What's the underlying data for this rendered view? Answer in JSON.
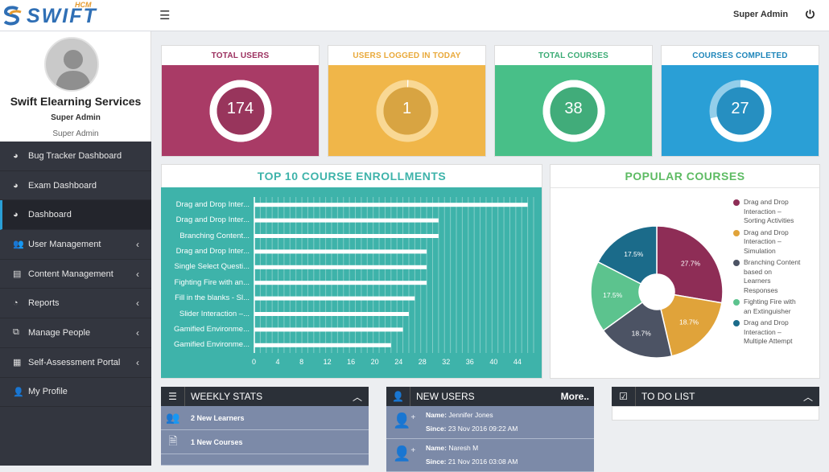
{
  "app": {
    "logo_text": "SWIFT",
    "logo_sup": "HCM",
    "user_name": "Super Admin"
  },
  "profile": {
    "org": "Swift Elearning Services",
    "role": "Super Admin",
    "role_sub": "Super Admin"
  },
  "nav": [
    {
      "label": "Bug Tracker Dashboard",
      "icon": "dashboard-icon",
      "chevron": false,
      "active": false
    },
    {
      "label": "Exam Dashboard",
      "icon": "dashboard-icon",
      "chevron": false,
      "active": false
    },
    {
      "label": "Dashboard",
      "icon": "dashboard-icon",
      "chevron": false,
      "active": true
    },
    {
      "label": "User Management",
      "icon": "users-icon",
      "chevron": true,
      "active": false
    },
    {
      "label": "Content Management",
      "icon": "book-icon",
      "chevron": true,
      "active": false
    },
    {
      "label": "Reports",
      "icon": "pie-chart-icon",
      "chevron": true,
      "active": false
    },
    {
      "label": "Manage People",
      "icon": "people-icon",
      "chevron": true,
      "active": false
    },
    {
      "label": "Self-Assessment Portal",
      "icon": "document-icon",
      "chevron": true,
      "active": false
    },
    {
      "label": "My Profile",
      "icon": "user-icon",
      "chevron": false,
      "active": false
    }
  ],
  "stats": [
    {
      "title": "TOTAL USERS",
      "value": "174",
      "color": "#a93b66",
      "title_color": "#9b2f5e",
      "ring": "#ffffff",
      "fill": 1.0
    },
    {
      "title": "USERS LOGGED IN TODAY",
      "value": "1",
      "color": "#f0b649",
      "title_color": "#e9a93a",
      "ring": "#f9dc9c",
      "fill": 0.006
    },
    {
      "title": "TOTAL COURSES",
      "value": "38",
      "color": "#48bf88",
      "title_color": "#3aab74",
      "ring": "#ffffff",
      "fill": 1.0
    },
    {
      "title": "COURSES COMPLETED",
      "value": "27",
      "color": "#2a9fd6",
      "title_color": "#1f86ba",
      "ring": "#9ed3ec",
      "fill": 0.71
    }
  ],
  "enrollments": {
    "title": "TOP 10 COURSE ENROLLMENTS",
    "chart_data": {
      "type": "bar",
      "orientation": "horizontal",
      "categories": [
        "Drag and Drop Inter...",
        "Drag and Drop Inter...",
        "Branching Content...",
        "Drag and Drop Inter...",
        "Single Select Questi...",
        "Fighting Fire with an...",
        "Fill in the blanks - Sl...",
        "Slider Interaction –...",
        "Gamified Environme...",
        "Gamified Environme..."
      ],
      "values": [
        46,
        31,
        31,
        29,
        29,
        29,
        27,
        26,
        25,
        23
      ],
      "xlim": [
        0,
        47
      ],
      "xticks": [
        "0",
        "4",
        "8",
        "12",
        "16",
        "20",
        "24",
        "28",
        "32",
        "36",
        "40",
        "44"
      ],
      "grid": true
    }
  },
  "popular": {
    "title": "POPULAR COURSES",
    "chart_data": {
      "type": "pie",
      "donut": true,
      "labels": [
        "Drag and Drop Interaction – Sorting Activities",
        "Drag and Drop Interaction – Simulation",
        "Branching Content based on Learners Responses",
        "Fighting Fire with an Extinguisher",
        "Drag and Drop Interaction – Multiple Attempt"
      ],
      "legend_lines": [
        [
          "Drag and Drop",
          "Interaction –",
          "Sorting Activities"
        ],
        [
          "Drag and Drop",
          "Interaction –",
          "Simulation"
        ],
        [
          "Branching Content",
          "based on",
          "Learners",
          "Responses"
        ],
        [
          "Fighting Fire with",
          "an Extinguisher"
        ],
        [
          "Drag and Drop",
          "Interaction –",
          "Multiple Attempt"
        ]
      ],
      "values": [
        27.7,
        18.7,
        18.7,
        17.5,
        17.5
      ],
      "value_labels": [
        "27.7%",
        "18.7%",
        "18.7%",
        "17.5%",
        "17.5%"
      ],
      "colors": [
        "#8e2d56",
        "#e0a33a",
        "#4c5364",
        "#5cc38e",
        "#1b6b8a"
      ],
      "legend": "right"
    }
  },
  "weekly": {
    "title": "WEEKLY STATS",
    "rows": [
      {
        "icon": "users-icon",
        "text": "2 New Learners"
      },
      {
        "icon": "file-icon",
        "text": "1 New Courses"
      }
    ]
  },
  "new_users": {
    "title": "NEW USERS",
    "more": "More..",
    "users": [
      {
        "name_label": "Name:",
        "name": "Jennifer Jones",
        "since_label": "Since:",
        "since": "23 Nov 2016 09:22 AM"
      },
      {
        "name_label": "Name:",
        "name": "Naresh M",
        "since_label": "Since:",
        "since": "21 Nov 2016 03:08 AM"
      }
    ]
  },
  "todo": {
    "title": "TO DO LIST"
  }
}
